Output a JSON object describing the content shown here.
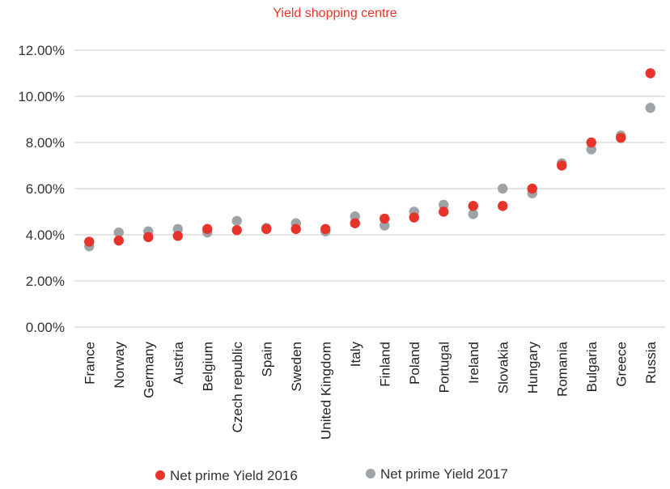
{
  "chart_data": {
    "type": "scatter",
    "title": "Yield shopping centre",
    "xlabel": "",
    "ylabel": "",
    "categories": [
      "France",
      "Norway",
      "Germany",
      "Austria",
      "Belgium",
      "Czech republic",
      "Spain",
      "Sweden",
      "United Kingdom",
      "Italy",
      "Finland",
      "Poland",
      "Portugal",
      "Ireland",
      "Slovakia",
      "Hungary",
      "Romania",
      "Bulgaria",
      "Greece",
      "Russia"
    ],
    "series": [
      {
        "name": "Net prime Yield 2016",
        "color": "#e8332a",
        "values": [
          3.7,
          3.75,
          3.9,
          3.95,
          4.25,
          4.2,
          4.25,
          4.25,
          4.25,
          4.5,
          4.7,
          4.75,
          5.0,
          5.25,
          5.25,
          6.0,
          7.0,
          8.0,
          8.2,
          11.0
        ]
      },
      {
        "name": "Net prime Yield 2017",
        "color": "#9ea3a8",
        "values": [
          3.5,
          4.1,
          4.15,
          4.25,
          4.1,
          4.6,
          4.3,
          4.5,
          4.15,
          4.8,
          4.4,
          5.0,
          5.3,
          4.9,
          6.0,
          5.8,
          7.1,
          7.7,
          8.3,
          9.5
        ]
      }
    ],
    "y_ticks": [
      "0.00%",
      "2.00%",
      "4.00%",
      "6.00%",
      "8.00%",
      "10.00%",
      "12.00%"
    ],
    "ylim": [
      0,
      12
    ],
    "grid": "horizontal",
    "legend_position": "bottom"
  }
}
